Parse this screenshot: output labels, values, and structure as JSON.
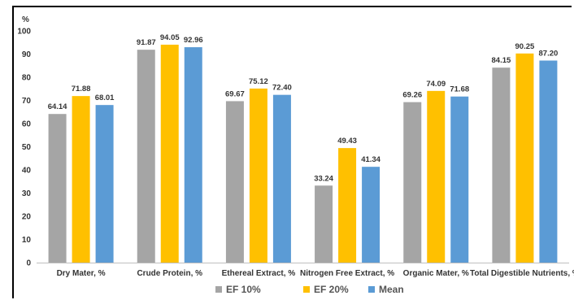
{
  "chart_data": {
    "type": "bar",
    "y_unit": "%",
    "categories": [
      "Dry Mater, %",
      "Crude Protein, %",
      "Ethereal Extract, %",
      "Nitrogen Free Extract, %",
      "Organic Mater, %",
      "Total Digestible Nutrients, %"
    ],
    "series": [
      {
        "name": "EF 10%",
        "color": "#a5a5a5",
        "values": [
          64.14,
          91.87,
          69.67,
          33.24,
          69.26,
          84.15
        ]
      },
      {
        "name": "EF 20%",
        "color": "#ffc000",
        "values": [
          71.88,
          94.05,
          75.12,
          49.43,
          74.09,
          90.25
        ]
      },
      {
        "name": "Mean",
        "color": "#5b9bd5",
        "values": [
          68.01,
          92.96,
          72.4,
          41.34,
          71.68,
          87.2
        ]
      }
    ],
    "ylim": [
      0,
      100
    ],
    "yticks": [
      0,
      10,
      20,
      30,
      40,
      50,
      60,
      70,
      80,
      90,
      100
    ],
    "grid": false,
    "legend_position": "bottom"
  }
}
